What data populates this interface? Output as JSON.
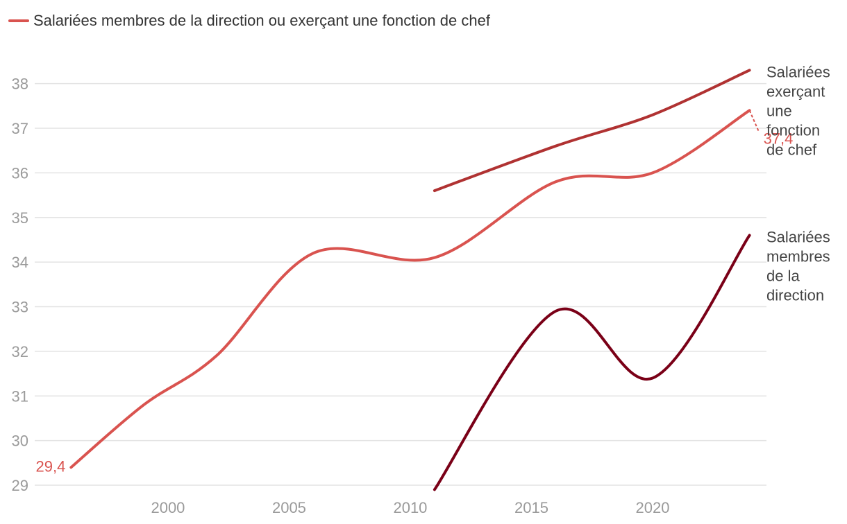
{
  "legend": {
    "label": "Salariées membres de la direction ou exerçant une fonction de chef",
    "color": "#d9534f"
  },
  "chart_data": {
    "type": "line",
    "title": "",
    "xlabel": "",
    "ylabel": "",
    "xlim": [
      1994.5,
      2024.7
    ],
    "ylim": [
      29,
      38.6
    ],
    "x_ticks": [
      2000,
      2005,
      2010,
      2015,
      2020
    ],
    "y_ticks": [
      29,
      30,
      31,
      32,
      33,
      34,
      35,
      36,
      37,
      38
    ],
    "grid": true,
    "legend_position": "top-left",
    "series": [
      {
        "name": "Salariées membres de la direction ou exerçant une fonction de chef",
        "color": "#d9534f",
        "x": [
          1996,
          1999,
          2002,
          2006,
          2011,
          2016,
          2020,
          2024
        ],
        "y": [
          29.4,
          30.8,
          31.9,
          34.2,
          34.1,
          35.8,
          36.0,
          37.4
        ],
        "start_label": "29,4",
        "end_label": "37,4"
      },
      {
        "name": "Salariées exerçant une fonction de chef",
        "color": "#b03232",
        "x": [
          2011,
          2016,
          2020,
          2024
        ],
        "y": [
          35.6,
          36.6,
          37.3,
          38.3
        ],
        "end_label_lines": [
          "Salariées",
          "exerçant",
          "une",
          "fonction",
          "de chef"
        ]
      },
      {
        "name": "Salariées membres de la direction",
        "color": "#7a0017",
        "x": [
          2011,
          2016,
          2020,
          2024
        ],
        "y": [
          28.9,
          32.9,
          31.4,
          34.6
        ],
        "end_label_lines": [
          "Salariées",
          "membres",
          "de la",
          "direction"
        ]
      }
    ]
  }
}
